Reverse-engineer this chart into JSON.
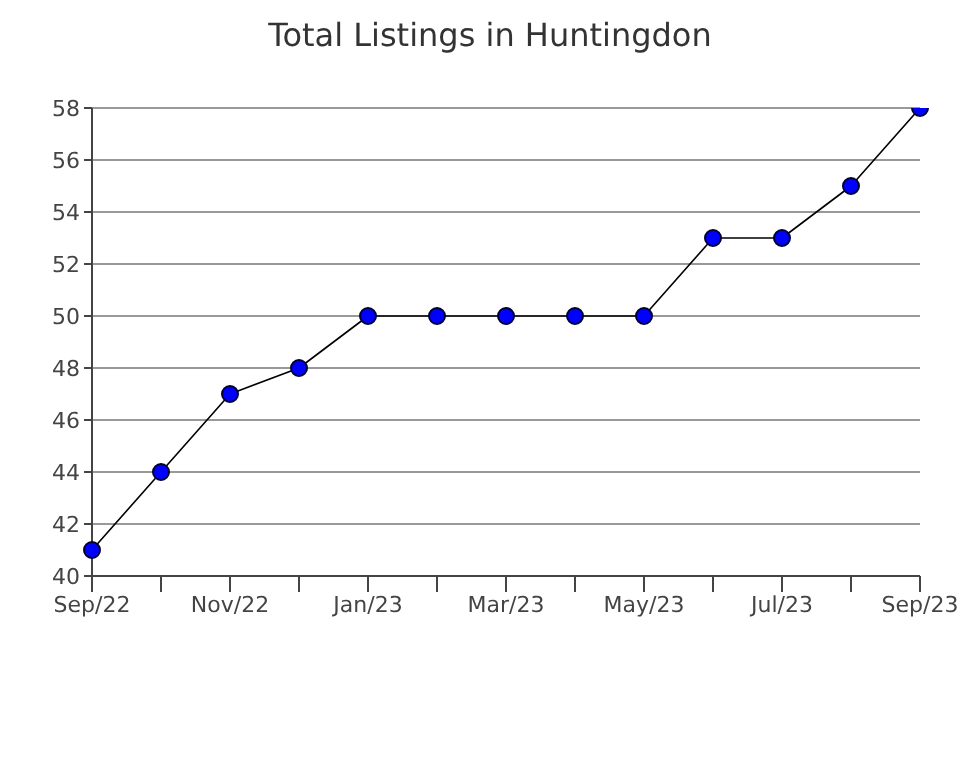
{
  "chart_data": {
    "type": "line",
    "title": "Total Listings in Huntingdon",
    "categories": [
      "Sep/22",
      null,
      "Nov/22",
      null,
      "Jan/23",
      null,
      "Mar/23",
      null,
      "May/23",
      null,
      "Jul/23",
      null,
      "Sep/23"
    ],
    "series": [
      {
        "color": "#0000ff",
        "values": [
          41,
          44,
          47,
          48,
          50,
          50,
          50,
          50,
          50,
          53,
          53,
          55,
          58
        ]
      }
    ],
    "ylim": [
      40,
      58
    ],
    "yticks": [
      40,
      42,
      44,
      46,
      48,
      50,
      52,
      54,
      56,
      58
    ],
    "grid": "y",
    "marker": "circle",
    "line_style": "solid",
    "legend": false
  }
}
